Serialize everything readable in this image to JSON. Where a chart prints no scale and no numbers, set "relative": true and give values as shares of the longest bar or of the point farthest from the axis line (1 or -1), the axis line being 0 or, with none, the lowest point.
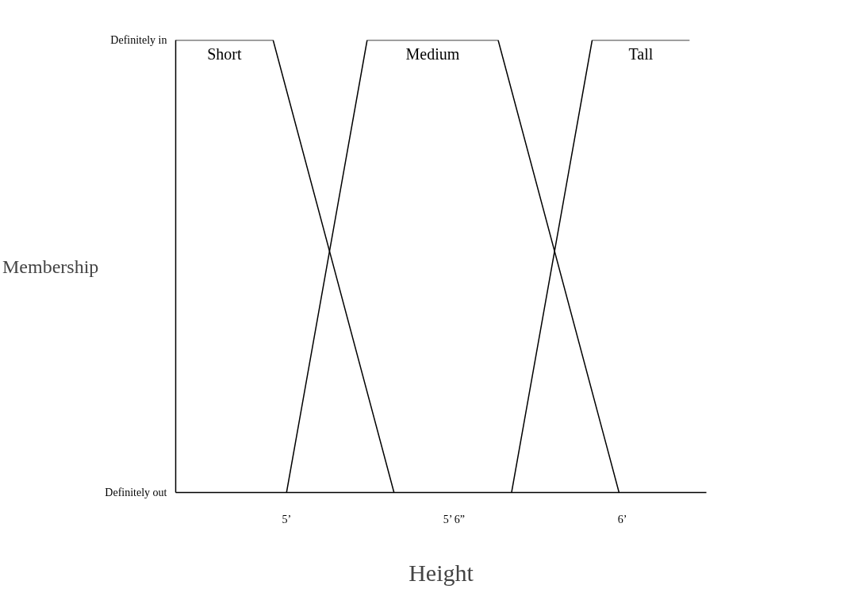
{
  "chart_data": {
    "type": "line",
    "xlabel": "Height",
    "ylabel": "Membership",
    "relative": true,
    "xlim": [
      4.67,
      6.25
    ],
    "xticks": [
      {
        "value": 5,
        "label": "5’"
      },
      {
        "value": 5.5,
        "label": "5’ 6”"
      },
      {
        "value": 6,
        "label": "6’"
      }
    ],
    "annotations": [
      "Definitely in",
      "Definitely out"
    ],
    "series": [
      {
        "name": "Short",
        "color": "#000000",
        "x": [
          4.67,
          4.96,
          5.32
        ],
        "values": [
          1,
          1,
          0
        ]
      },
      {
        "name": "Medium",
        "color": "#000000",
        "x": [
          5.0,
          5.24,
          5.63,
          5.99
        ],
        "values": [
          0,
          1,
          1,
          0
        ]
      },
      {
        "name": "Tall",
        "color": "#000000",
        "x": [
          5.67,
          5.91,
          6.2
        ],
        "values": [
          0,
          1,
          1
        ]
      }
    ],
    "grid": false,
    "marker": "none",
    "line_style": "solid"
  }
}
